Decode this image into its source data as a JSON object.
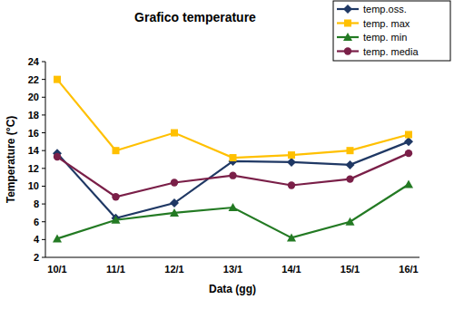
{
  "chart_data": {
    "type": "line",
    "title": "Grafico temperature",
    "x_label": "Data (gg)",
    "y_label": "Temperature (°C)",
    "categories": [
      "10/1",
      "11/1",
      "12/1",
      "13/1",
      "14/1",
      "15/1",
      "16/1"
    ],
    "series": [
      {
        "name": "temp.oss.",
        "color": "#1f3864",
        "marker": "diamond",
        "line_style": "solid",
        "values": [
          13.7,
          6.4,
          8.1,
          12.8,
          12.7,
          12.4,
          15.0
        ]
      },
      {
        "name": "temp. max",
        "color": "#ffc000",
        "marker": "square",
        "line_style": "solid",
        "values": [
          22.0,
          14.0,
          16.0,
          13.2,
          13.5,
          14.0,
          15.8
        ]
      },
      {
        "name": "temp. min",
        "color": "#237a23",
        "marker": "triangle",
        "line_style": "solid",
        "values": [
          4.1,
          6.2,
          7.0,
          7.6,
          4.2,
          6.0,
          10.2
        ]
      },
      {
        "name": "temp. media",
        "color": "#7a1f48",
        "marker": "circle",
        "line_style": "solid",
        "values": [
          13.3,
          8.8,
          10.4,
          11.2,
          10.1,
          10.8,
          13.7
        ]
      }
    ],
    "ylim": [
      2,
      24
    ],
    "yticks": [
      2,
      4,
      6,
      8,
      10,
      12,
      14,
      16,
      18,
      20,
      22,
      24
    ],
    "grid": false,
    "legend": "top-right"
  }
}
